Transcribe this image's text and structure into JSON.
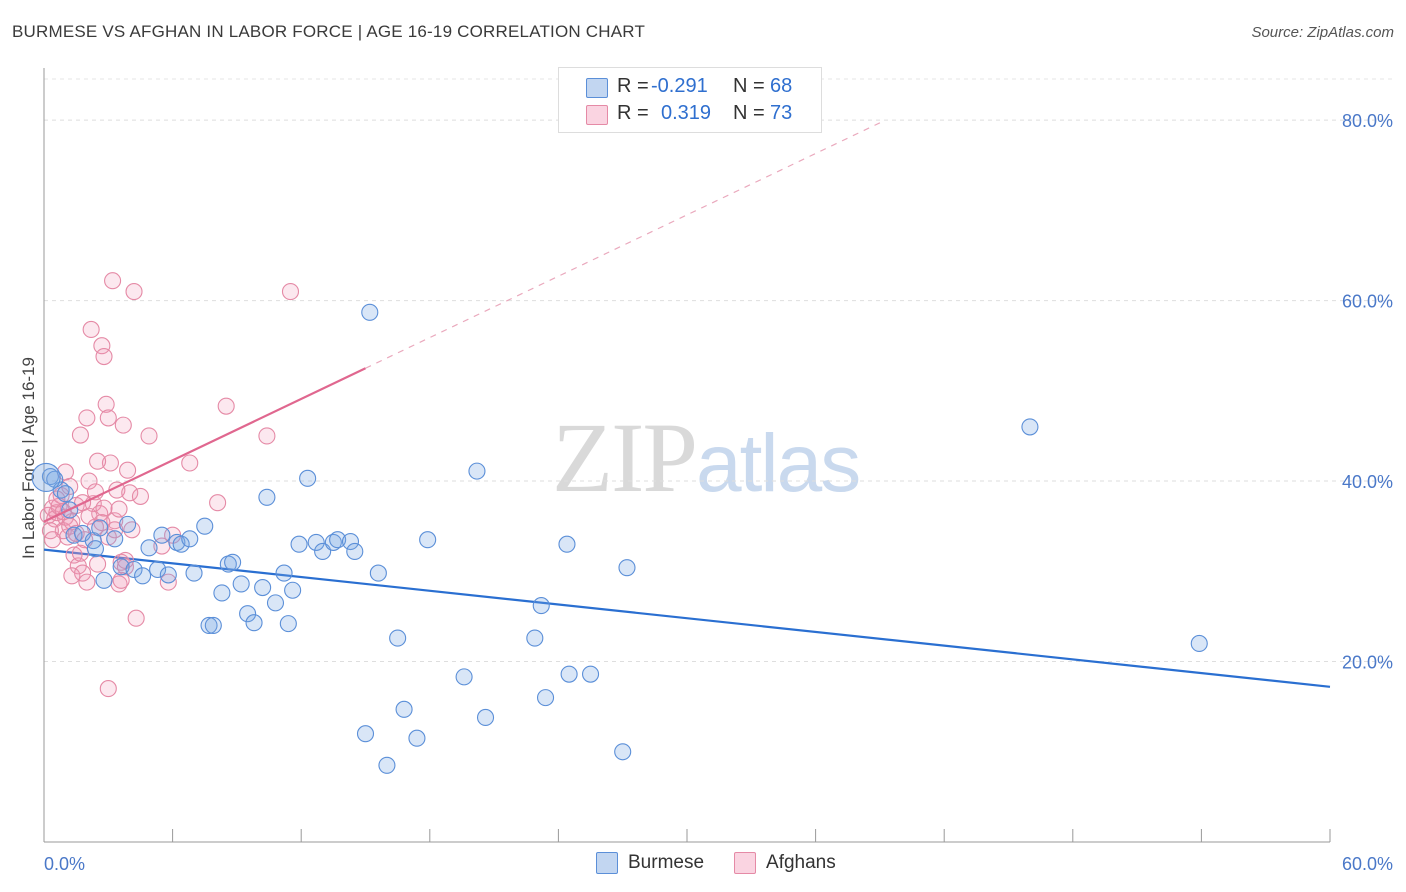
{
  "title": "BURMESE VS AFGHAN IN LABOR FORCE | AGE 16-19 CORRELATION CHART",
  "source": "Source: ZipAtlas.com",
  "watermark": {
    "zip": "ZIP",
    "atlas": "atlas"
  },
  "legend": {
    "r_label": "R =",
    "n_label": "N =",
    "burmese": {
      "r": "-0.291",
      "n": "68"
    },
    "afghans": {
      "r": "0.319",
      "n": "73"
    }
  },
  "colors": {
    "burmese": "#5b8fd8",
    "burmese_fill": "rgba(120,165,225,0.28)",
    "burmese_line": "#2a6fd1",
    "afghans": "#e58aa6",
    "afghans_fill": "rgba(240,150,180,0.22)",
    "afghans_line": "#e0678f",
    "axis_text": "#4a78c8"
  },
  "chart_data": {
    "type": "scatter",
    "title": "BURMESE VS AFGHAN IN LABOR FORCE | AGE 16-19 CORRELATION CHART",
    "xlabel": "",
    "ylabel": "In Labor Force | Age 16-19",
    "xlim": [
      0,
      60
    ],
    "ylim": [
      0,
      85
    ],
    "x_tick_labels": [
      "0.0%",
      "60.0%"
    ],
    "y_ticks": [
      20,
      40,
      60,
      80
    ],
    "y_tick_labels": [
      "20.0%",
      "40.0%",
      "60.0%",
      "80.0%"
    ],
    "grid": true,
    "legend_position": "top-center and bottom",
    "series": [
      {
        "name": "Burmese",
        "points": [
          [
            0.3,
            40.5
          ],
          [
            0.8,
            39.0
          ],
          [
            1.2,
            36.8
          ],
          [
            1.4,
            34.0
          ],
          [
            1.8,
            34.2
          ],
          [
            2.3,
            33.4
          ],
          [
            2.4,
            32.5
          ],
          [
            2.6,
            34.8
          ],
          [
            2.8,
            29.0
          ],
          [
            3.3,
            33.6
          ],
          [
            3.6,
            30.5
          ],
          [
            3.9,
            35.2
          ],
          [
            4.2,
            30.2
          ],
          [
            4.6,
            29.5
          ],
          [
            4.9,
            32.6
          ],
          [
            5.3,
            30.2
          ],
          [
            5.5,
            34.0
          ],
          [
            5.8,
            29.6
          ],
          [
            6.2,
            33.2
          ],
          [
            6.4,
            33.0
          ],
          [
            6.8,
            33.6
          ],
          [
            7.0,
            29.8
          ],
          [
            7.5,
            35.0
          ],
          [
            7.7,
            24.0
          ],
          [
            7.9,
            24.0
          ],
          [
            8.3,
            27.6
          ],
          [
            8.6,
            30.8
          ],
          [
            8.8,
            31.0
          ],
          [
            9.2,
            28.6
          ],
          [
            9.5,
            25.3
          ],
          [
            9.8,
            24.3
          ],
          [
            10.2,
            28.2
          ],
          [
            10.4,
            38.2
          ],
          [
            10.8,
            26.5
          ],
          [
            11.2,
            29.8
          ],
          [
            11.4,
            24.2
          ],
          [
            11.6,
            27.9
          ],
          [
            11.9,
            33.0
          ],
          [
            12.3,
            40.3
          ],
          [
            12.7,
            33.2
          ],
          [
            13.0,
            32.2
          ],
          [
            13.5,
            33.2
          ],
          [
            13.7,
            33.5
          ],
          [
            14.3,
            33.3
          ],
          [
            14.5,
            32.2
          ],
          [
            15.0,
            12.0
          ],
          [
            15.2,
            58.7
          ],
          [
            15.6,
            29.8
          ],
          [
            16.0,
            8.5
          ],
          [
            16.5,
            22.6
          ],
          [
            16.8,
            14.7
          ],
          [
            17.4,
            11.5
          ],
          [
            17.9,
            33.5
          ],
          [
            19.6,
            18.3
          ],
          [
            20.2,
            41.1
          ],
          [
            20.6,
            13.8
          ],
          [
            22.9,
            22.6
          ],
          [
            23.2,
            26.2
          ],
          [
            23.4,
            16.0
          ],
          [
            24.4,
            33.0
          ],
          [
            24.5,
            18.6
          ],
          [
            25.5,
            18.6
          ],
          [
            27.0,
            10.0
          ],
          [
            27.2,
            30.4
          ],
          [
            46.0,
            46.0
          ],
          [
            53.9,
            22.0
          ],
          [
            0.5,
            40.2
          ],
          [
            1.0,
            38.6
          ]
        ]
      },
      {
        "name": "Afghans",
        "points": [
          [
            0.2,
            36.2
          ],
          [
            0.4,
            37.0
          ],
          [
            0.5,
            35.8
          ],
          [
            0.6,
            36.5
          ],
          [
            0.7,
            37.2
          ],
          [
            0.8,
            38.4
          ],
          [
            0.9,
            34.5
          ],
          [
            1.0,
            36.0
          ],
          [
            1.1,
            33.8
          ],
          [
            1.2,
            39.4
          ],
          [
            1.3,
            35.5
          ],
          [
            1.4,
            31.8
          ],
          [
            1.5,
            37.3
          ],
          [
            1.6,
            30.6
          ],
          [
            1.7,
            45.1
          ],
          [
            1.8,
            29.8
          ],
          [
            1.9,
            33.5
          ],
          [
            2.0,
            47.0
          ],
          [
            2.1,
            40.0
          ],
          [
            2.2,
            56.8
          ],
          [
            2.3,
            37.5
          ],
          [
            2.4,
            34.9
          ],
          [
            2.5,
            30.8
          ],
          [
            2.6,
            36.4
          ],
          [
            2.7,
            55.0
          ],
          [
            2.8,
            53.8
          ],
          [
            2.9,
            48.5
          ],
          [
            3.0,
            47.0
          ],
          [
            3.1,
            42.0
          ],
          [
            3.2,
            62.2
          ],
          [
            3.3,
            35.6
          ],
          [
            3.4,
            39.0
          ],
          [
            3.5,
            28.6
          ],
          [
            3.6,
            31.0
          ],
          [
            3.7,
            46.2
          ],
          [
            3.8,
            30.5
          ],
          [
            3.9,
            41.2
          ],
          [
            4.0,
            38.7
          ],
          [
            4.1,
            34.6
          ],
          [
            4.2,
            61.0
          ],
          [
            4.3,
            24.8
          ],
          [
            4.5,
            38.3
          ],
          [
            4.9,
            45.0
          ],
          [
            5.5,
            32.8
          ],
          [
            5.8,
            28.8
          ],
          [
            6.0,
            34.0
          ],
          [
            6.8,
            42.0
          ],
          [
            8.1,
            37.6
          ],
          [
            8.5,
            48.3
          ],
          [
            10.4,
            45.0
          ],
          [
            11.5,
            61.0
          ],
          [
            3.0,
            17.0
          ],
          [
            0.3,
            34.5
          ],
          [
            0.6,
            38.0
          ],
          [
            0.9,
            36.6
          ],
          [
            1.2,
            35.0
          ],
          [
            1.5,
            34.2
          ],
          [
            1.8,
            37.6
          ],
          [
            2.1,
            36.1
          ],
          [
            2.5,
            42.2
          ],
          [
            2.7,
            35.4
          ],
          [
            3.0,
            33.8
          ],
          [
            3.3,
            34.6
          ],
          [
            3.5,
            36.9
          ],
          [
            3.8,
            31.2
          ],
          [
            1.0,
            41.0
          ],
          [
            1.3,
            29.5
          ],
          [
            1.7,
            32.0
          ],
          [
            2.0,
            28.8
          ],
          [
            2.4,
            38.8
          ],
          [
            2.8,
            37.0
          ],
          [
            3.6,
            29.0
          ],
          [
            0.4,
            33.5
          ]
        ]
      }
    ],
    "trend_lines": [
      {
        "name": "Burmese",
        "x": [
          0,
          60
        ],
        "y": [
          32.4,
          17.2
        ]
      },
      {
        "name": "Afghans",
        "x": [
          0,
          15
        ],
        "y": [
          35.5,
          52.5
        ],
        "extends_dashed_to_x": 39
      }
    ]
  }
}
